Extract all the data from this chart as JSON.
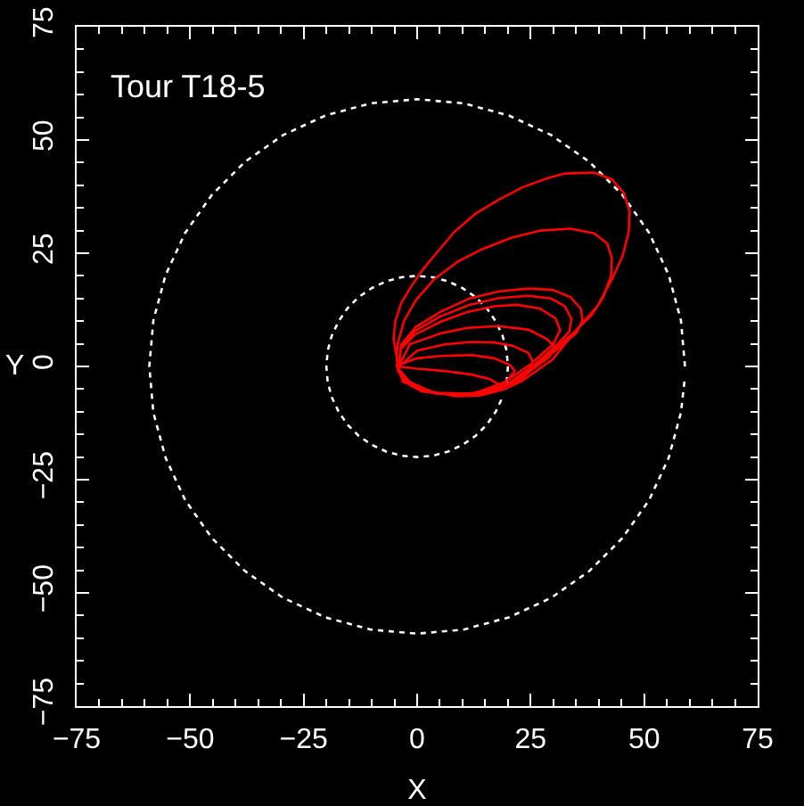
{
  "chart_data": {
    "type": "line",
    "title": "Tour T18-5",
    "xlabel": "X",
    "ylabel": "Y",
    "xlim": [
      -75,
      75
    ],
    "ylim": [
      -75,
      75
    ],
    "xticks": [
      -75,
      {
        "value": -70,
        "label": null
      },
      {
        "value": -65,
        "label": null
      },
      {
        "value": -60,
        "label": null
      },
      {
        "value": -55,
        "label": null
      },
      -50,
      {
        "value": -45,
        "label": null
      },
      {
        "value": -40,
        "label": null
      },
      {
        "value": -35,
        "label": null
      },
      {
        "value": -30,
        "label": null
      },
      -25,
      {
        "value": -20,
        "label": null
      },
      {
        "value": -15,
        "label": null
      },
      {
        "value": -10,
        "label": null
      },
      {
        "value": -5,
        "label": null
      },
      0,
      {
        "value": 5,
        "label": null
      },
      {
        "value": 10,
        "label": null
      },
      {
        "value": 15,
        "label": null
      },
      {
        "value": 20,
        "label": null
      },
      25,
      {
        "value": 30,
        "label": null
      },
      {
        "value": 35,
        "label": null
      },
      {
        "value": 40,
        "label": null
      },
      {
        "value": 45,
        "label": null
      },
      50,
      {
        "value": 55,
        "label": null
      },
      {
        "value": 60,
        "label": null
      },
      {
        "value": 65,
        "label": null
      },
      {
        "value": 70,
        "label": null
      },
      75
    ],
    "yticks": [
      -75,
      {
        "value": -70,
        "label": null
      },
      {
        "value": -65,
        "label": null
      },
      {
        "value": -60,
        "label": null
      },
      {
        "value": -55,
        "label": null
      },
      -50,
      {
        "value": -45,
        "label": null
      },
      {
        "value": -40,
        "label": null
      },
      {
        "value": -35,
        "label": null
      },
      {
        "value": -30,
        "label": null
      },
      -25,
      {
        "value": -20,
        "label": null
      },
      {
        "value": -15,
        "label": null
      },
      {
        "value": -10,
        "label": null
      },
      {
        "value": -5,
        "label": null
      },
      0,
      {
        "value": 5,
        "label": null
      },
      {
        "value": 10,
        "label": null
      },
      {
        "value": 15,
        "label": null
      },
      {
        "value": 20,
        "label": null
      },
      25,
      {
        "value": 30,
        "label": null
      },
      {
        "value": 35,
        "label": null
      },
      {
        "value": 40,
        "label": null
      },
      {
        "value": 45,
        "label": null
      },
      50,
      {
        "value": 55,
        "label": null
      },
      {
        "value": 60,
        "label": null
      },
      {
        "value": 65,
        "label": null
      },
      {
        "value": 70,
        "label": null
      },
      75
    ],
    "series": [
      {
        "color": "#ffffff",
        "line_style": "dotted",
        "x": [
          19.7,
          20,
          19.7,
          18.8,
          17.3,
          15.3,
          12.9,
          10,
          6.8,
          3.5,
          0,
          -3.5,
          -6.8,
          -10,
          -12.9,
          -15.3,
          -17.3,
          -18.8,
          -19.7,
          -20,
          -19.7,
          -18.8,
          -17.3,
          -15.3,
          -12.9,
          -10,
          -6.8,
          -3.5,
          0,
          3.5,
          6.8,
          10,
          12.9,
          15.3,
          17.3,
          18.8
        ],
        "values": [
          -3.5,
          0,
          3.5,
          6.8,
          10,
          12.9,
          15.3,
          17.3,
          18.8,
          19.7,
          20,
          19.7,
          18.8,
          17.3,
          15.3,
          12.9,
          10,
          6.8,
          3.5,
          0,
          -3.5,
          -6.8,
          -10,
          -12.9,
          -15.3,
          -17.3,
          -18.8,
          -19.7,
          -20,
          -19.7,
          -18.8,
          -17.3,
          -15.3,
          -12.9,
          -10,
          -6.8
        ]
      },
      {
        "color": "#ffffff",
        "line_style": "dotted",
        "x": [
          59,
          58.1,
          55.4,
          51.1,
          45.2,
          37.9,
          29.5,
          20.2,
          10.2,
          0,
          -10.2,
          -20.2,
          -29.5,
          -37.9,
          -45.2,
          -51.1,
          -55.4,
          -58.1,
          -59,
          -58.1,
          -55.4,
          -51.1,
          -45.2,
          -37.9,
          -29.5,
          -20.2,
          -10.2,
          0,
          10.2,
          20.2,
          29.5,
          37.9,
          45.2,
          51.1,
          55.4,
          58.1,
          58.9
        ],
        "values": [
          0,
          10.2,
          20.2,
          29.5,
          37.9,
          45.2,
          51.1,
          55.4,
          58.1,
          59,
          58.1,
          55.4,
          51.1,
          45.2,
          37.9,
          29.5,
          20.2,
          10.2,
          0,
          -10.2,
          -20.2,
          -29.5,
          -37.9,
          -45.2,
          -51.1,
          -55.4,
          -58.1,
          -59,
          -58.1,
          -55.4,
          -51.1,
          -45.2,
          -37.9,
          -29.5,
          -20.2,
          -10.2,
          -3.1
        ]
      },
      {
        "color": "#ff0000",
        "x": [
          -4.4,
          -5.2,
          -4.8,
          -3.5,
          -1.6,
          1.1,
          4.3,
          8.2,
          12.8,
          18.1,
          23.3,
          28.5,
          32.5,
          39,
          42.9,
          45.5,
          46.8,
          46.6,
          45.3,
          42.9,
          39.7,
          35.1,
          29.8,
          23.3,
          19.4,
          14.1,
          8.9,
          3.7,
          -1.6,
          -4.2,
          -4.5,
          -4.3,
          -2.9,
          -0.3,
          3.7,
          8.9,
          14.1,
          20.7,
          27.2,
          33.8,
          39,
          41.9,
          42.9,
          42.7,
          41,
          38.4,
          34.4,
          29.8,
          23.3,
          17,
          10,
          3.7,
          -1.6,
          -4.2,
          -4.2,
          -3.5,
          -0.3,
          5,
          11.5,
          18.1,
          24.6,
          29.8,
          33.8,
          36.1,
          36.4,
          35.1,
          28,
          22,
          16,
          9,
          3,
          -1.6,
          -4.2,
          -3.6,
          -0.5,
          5,
          11.5,
          18,
          24.5,
          29.5,
          32.5,
          34,
          33.5,
          31,
          26,
          20,
          14,
          8,
          2.5,
          -1.8,
          -4.2,
          -3.6,
          -0.5,
          5,
          11,
          17,
          22,
          27,
          30.5,
          31.5,
          30,
          25,
          19,
          13,
          7,
          2,
          -2,
          -4.3,
          -1.6,
          5.1,
          11,
          18,
          24.6,
          28.5,
          30.5,
          29,
          24,
          18,
          11,
          4,
          -1.5,
          -4.3,
          0,
          6.3,
          12,
          16.9,
          21,
          24.5,
          25.5,
          24,
          19,
          11,
          3,
          -2.5,
          -4.4,
          0,
          5.1,
          12,
          17,
          20.5,
          21.5,
          19,
          12,
          4,
          -3,
          -4.4,
          0,
          6,
          12,
          16,
          18.5,
          17.5,
          15,
          8,
          1,
          -3.5
        ],
        "values": [
          1.5,
          6.1,
          10,
          14,
          17.2,
          21.2,
          25.1,
          29.7,
          33.7,
          36.9,
          39.6,
          41.5,
          42.6,
          42.8,
          41.3,
          38.3,
          34.3,
          29.7,
          24.5,
          19.2,
          13.3,
          8.1,
          1.5,
          -3.1,
          -5,
          -6.4,
          -6.6,
          -5.7,
          -3.7,
          -1.1,
          2,
          5,
          10,
          14.6,
          19.2,
          23.1,
          25.8,
          28.4,
          30,
          30.4,
          29.4,
          27.1,
          23.8,
          19.9,
          15.3,
          11.3,
          7.4,
          3.5,
          -2.5,
          -5.3,
          -6.6,
          -5.7,
          -3.7,
          -1.1,
          -1,
          4.8,
          8.7,
          12,
          15,
          16.6,
          17.2,
          16.9,
          15.3,
          12.7,
          10,
          7.4,
          1.5,
          -3.2,
          -5.8,
          -6.6,
          -5.6,
          -3.7,
          -1,
          4.2,
          7.8,
          11,
          13.6,
          15.1,
          15.6,
          15,
          13.3,
          10.5,
          7.7,
          5,
          0.5,
          -3.8,
          -6,
          -6.5,
          -5.4,
          -3.6,
          -1,
          3.8,
          7,
          9.8,
          12,
          13.3,
          13.6,
          12.8,
          10.6,
          8,
          5,
          0.5,
          -3.6,
          -5.8,
          -6.3,
          -5.3,
          -3.5,
          -0.5,
          4.9,
          7.3,
          8.5,
          8.9,
          8.1,
          6.1,
          4.1,
          2,
          -1.7,
          -4.8,
          -6.2,
          -6,
          -3.5,
          -0.3,
          3.5,
          4.9,
          5.4,
          5.3,
          4.6,
          3,
          1,
          -1.5,
          -4.5,
          -6.2,
          -5.8,
          -3.4,
          0.2,
          1.8,
          2.3,
          2.5,
          1.8,
          0.3,
          -1,
          -4,
          -6,
          -5.8,
          -3.5,
          0,
          -0.5,
          -1,
          -1.8,
          -2.8,
          -4.3,
          -5.3,
          -5.9,
          -6.3,
          -5.5,
          -3
        ]
      }
    ]
  }
}
